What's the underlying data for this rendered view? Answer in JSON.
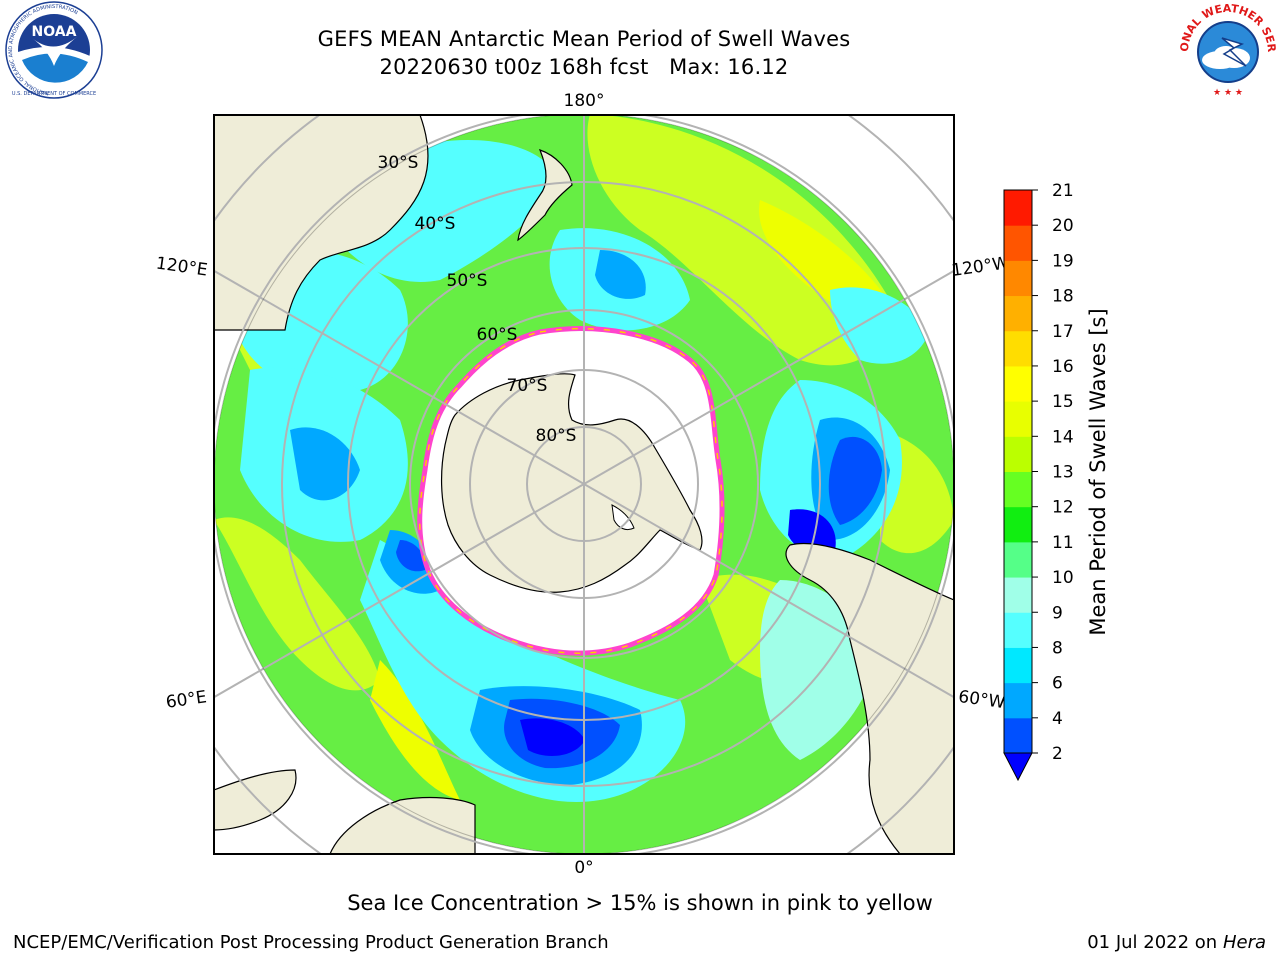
{
  "header": {
    "title_line1": "GEFS MEAN Antarctic Mean Period of Swell Waves",
    "title_line2": "20220630 t00z 168h fcst   Max: 16.12"
  },
  "logos": {
    "noaa": {
      "text": "NOAA",
      "ring_text": "NATIONAL OCEANIC AND ATMOSPHERIC ADMINISTRATION",
      "bottom_text": "U.S. DEPARTMENT OF COMMERCE"
    },
    "nws": {
      "ring_text": "NATIONAL WEATHER SERVICE"
    }
  },
  "map": {
    "projection": "south-polar-stereographic",
    "lon_labels": [
      "180°",
      "120°E",
      "120°W",
      "60°E",
      "60°W",
      "0°"
    ],
    "lat_labels": [
      "30°S",
      "40°S",
      "50°S",
      "60°S",
      "70°S",
      "80°S"
    ],
    "colors": {
      "land": "#efedd8",
      "sea_ice_zone": "#ffffff",
      "ice_edge": "#ff44cc",
      "gridline": "#b3b3b3"
    }
  },
  "colorbar": {
    "label": "Mean Period of Swell Waves [s]",
    "ticks": [
      "2",
      "4",
      "6",
      "8",
      "9",
      "10",
      "11",
      "12",
      "13",
      "14",
      "15",
      "16",
      "17",
      "18",
      "19",
      "20",
      "21"
    ],
    "colors": [
      "#0050ff",
      "#00a8ff",
      "#00e8ff",
      "#55ffff",
      "#a0ffe8",
      "#55ff88",
      "#11ee11",
      "#66ff22",
      "#bbff00",
      "#e8ff00",
      "#ffff00",
      "#ffdd00",
      "#ffb000",
      "#ff8800",
      "#ff5500",
      "#ff1a00"
    ],
    "extend_color": "#0000ff"
  },
  "footer": {
    "note": "Sea Ice Concentration > 15% is shown in pink to yellow",
    "credit": "NCEP/EMC/Verification Post Processing Product Generation Branch",
    "date": "01 Jul 2022 on",
    "machine": "Hera"
  }
}
